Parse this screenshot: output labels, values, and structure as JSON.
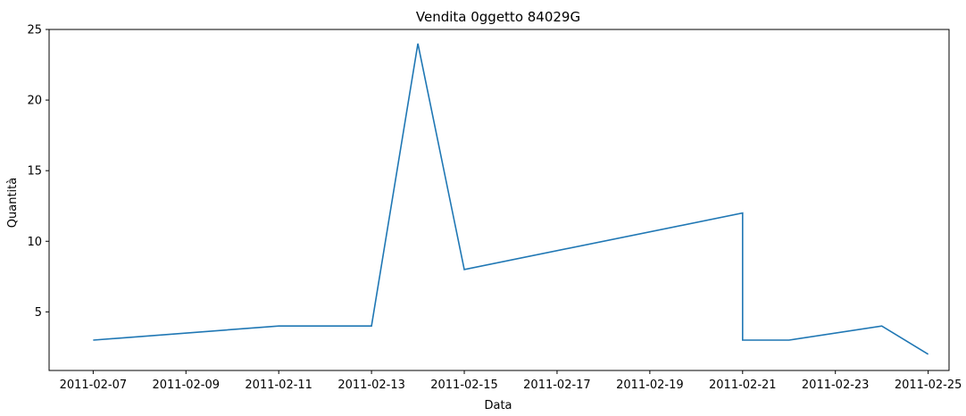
{
  "chart_data": {
    "type": "line",
    "title": "Vendita 0ggetto 84029G",
    "xlabel": "Data",
    "ylabel": "Quantità",
    "x_type": "date",
    "xlim": [
      "2011-02-06",
      "2011-02-25"
    ],
    "ylim": [
      1,
      25
    ],
    "grid": false,
    "legend": "none",
    "x_ticks": [
      "2011-02-07",
      "2011-02-09",
      "2011-02-11",
      "2011-02-13",
      "2011-02-15",
      "2011-02-17",
      "2011-02-19",
      "2011-02-21",
      "2011-02-23",
      "2011-02-25"
    ],
    "y_ticks": [
      5,
      10,
      15,
      20,
      25
    ],
    "series": [
      {
        "color": "#1f77b4",
        "points": [
          {
            "x": "2011-02-07",
            "y": 3
          },
          {
            "x": "2011-02-11",
            "y": 4
          },
          {
            "x": "2011-02-13",
            "y": 4
          },
          {
            "x": "2011-02-14",
            "y": 24
          },
          {
            "x": "2011-02-15",
            "y": 8
          },
          {
            "x": "2011-02-21",
            "y": 12
          },
          {
            "x": "2011-02-21",
            "y": 3
          },
          {
            "x": "2011-02-22",
            "y": 3
          },
          {
            "x": "2011-02-24",
            "y": 4
          },
          {
            "x": "2011-02-25",
            "y": 2
          }
        ]
      }
    ]
  }
}
